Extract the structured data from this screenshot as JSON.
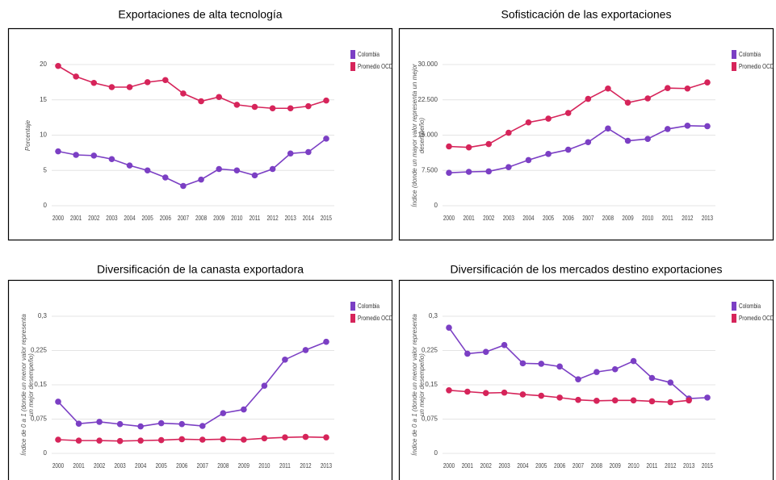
{
  "chart_data": [
    {
      "type": "line",
      "title": "Exportaciones de alta tecnología",
      "y_label": "Porcentaje",
      "categories": [
        "2000",
        "2001",
        "2002",
        "2003",
        "2004",
        "2005",
        "2006",
        "2007",
        "2008",
        "2009",
        "2010",
        "2011",
        "2012",
        "2013",
        "2014",
        "2015"
      ],
      "series": [
        {
          "name": "Colombia",
          "color": "#7b3fc4",
          "values": [
            7.7,
            7.2,
            7.1,
            6.6,
            5.7,
            5.0,
            4.0,
            2.8,
            3.7,
            5.2,
            5.0,
            4.3,
            5.2,
            7.4,
            7.6,
            9.5
          ]
        },
        {
          "name": "Promedio OCDE",
          "color": "#d6245a",
          "values": [
            19.8,
            18.3,
            17.4,
            16.8,
            16.8,
            17.5,
            17.8,
            15.9,
            14.8,
            15.4,
            14.3,
            14.0,
            13.8,
            13.8,
            14.1,
            14.9
          ]
        }
      ],
      "ylim": [
        0,
        20
      ],
      "yticks": [
        0,
        5,
        10,
        15,
        20
      ],
      "grid": true
    },
    {
      "type": "line",
      "title": "Sofisticación de las exportaciones",
      "y_label": "Índice (donde un mayor valor representa un mejor desempeño)",
      "categories": [
        "2000",
        "2001",
        "2002",
        "2003",
        "2004",
        "2005",
        "2006",
        "2007",
        "2008",
        "2009",
        "2010",
        "2011",
        "2012",
        "2013"
      ],
      "series": [
        {
          "name": "Colombia",
          "color": "#7b3fc4",
          "values": [
            7000,
            7200,
            7300,
            8200,
            9700,
            11000,
            11900,
            13500,
            16400,
            13800,
            14200,
            16300,
            17000,
            16900
          ]
        },
        {
          "name": "Promedio OCDE",
          "color": "#d6245a",
          "values": [
            12600,
            12400,
            13100,
            15500,
            17700,
            18500,
            19700,
            22700,
            24900,
            21900,
            22800,
            25000,
            24900,
            26200
          ]
        }
      ],
      "ylim": [
        0,
        30000
      ],
      "yticks": [
        0,
        {
          "value": 7500,
          "label": "7.500"
        },
        {
          "value": 15000,
          "label": "15.000"
        },
        {
          "value": 22500,
          "label": "22.500"
        },
        {
          "value": 30000,
          "label": "30.000"
        }
      ],
      "grid": true
    },
    {
      "type": "line",
      "title": "Diversificación de la canasta exportadora",
      "y_label": "Índice de 0 a 1 (donde un menor valor representa un mejor desempeño)",
      "categories": [
        "2000",
        "2001",
        "2002",
        "2003",
        "2004",
        "2005",
        "2006",
        "2007",
        "2008",
        "2009",
        "2010",
        "2011",
        "2012",
        "2013"
      ],
      "series": [
        {
          "name": "Colombia",
          "color": "#7b3fc4",
          "values": [
            0.113,
            0.065,
            0.069,
            0.064,
            0.059,
            0.066,
            0.064,
            0.06,
            0.088,
            0.096,
            0.148,
            0.205,
            0.226,
            0.244
          ]
        },
        {
          "name": "Promedio OCDE",
          "color": "#d6245a",
          "values": [
            0.03,
            0.028,
            0.028,
            0.027,
            0.028,
            0.029,
            0.031,
            0.03,
            0.031,
            0.03,
            0.033,
            0.035,
            0.036,
            0.035
          ]
        }
      ],
      "ylim": [
        0,
        0.3
      ],
      "yticks": [
        0,
        {
          "value": 0.075,
          "label": "0,075"
        },
        {
          "value": 0.15,
          "label": "0,15"
        },
        {
          "value": 0.225,
          "label": "0,225"
        },
        {
          "value": 0.3,
          "label": "0,3"
        }
      ],
      "grid": true
    },
    {
      "type": "line",
      "title": "Diversificación de los mercados destino exportaciones",
      "y_label": "Índice de 0 a 1 (donde un menor valor representa un mejor desempeño)",
      "categories": [
        "2000",
        "2001",
        "2002",
        "2003",
        "2004",
        "2005",
        "2006",
        "2007",
        "2008",
        "2009",
        "2010",
        "2011",
        "2012",
        "2013",
        "2015"
      ],
      "series": [
        {
          "name": "Colombia",
          "color": "#7b3fc4",
          "values": [
            0.275,
            0.218,
            0.222,
            0.237,
            0.197,
            0.196,
            0.19,
            0.162,
            0.178,
            0.184,
            0.202,
            0.165,
            0.155,
            0.12,
            0.122
          ]
        },
        {
          "name": "Promedio OCDE",
          "color": "#d6245a",
          "values": [
            0.138,
            0.135,
            0.132,
            0.133,
            0.129,
            0.126,
            0.122,
            0.117,
            0.115,
            0.116,
            0.116,
            0.114,
            0.112,
            0.116,
            null
          ]
        }
      ],
      "ylim": [
        0,
        0.3
      ],
      "yticks": [
        0,
        {
          "value": 0.075,
          "label": "0,075"
        },
        {
          "value": 0.15,
          "label": "0,15"
        },
        {
          "value": 0.225,
          "label": "0,225"
        },
        {
          "value": 0.3,
          "label": "0,3"
        }
      ],
      "grid": true
    }
  ]
}
